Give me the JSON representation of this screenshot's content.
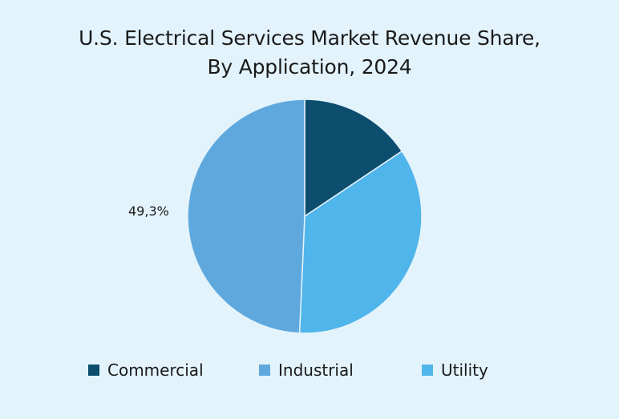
{
  "chart_data": {
    "type": "pie",
    "title": [
      "U.S. Electrical Services Market Revenue Share,",
      "By Application, 2024"
    ],
    "categories": [
      "Commercial",
      "Industrial",
      "Utility"
    ],
    "values": [
      15.6,
      49.3,
      35.1
    ],
    "data_labels": [
      "",
      "49,3%",
      ""
    ],
    "colors": [
      "#0d4d6e",
      "#5ea8dd",
      "#4fb5ea"
    ],
    "legend_position": "bottom"
  }
}
